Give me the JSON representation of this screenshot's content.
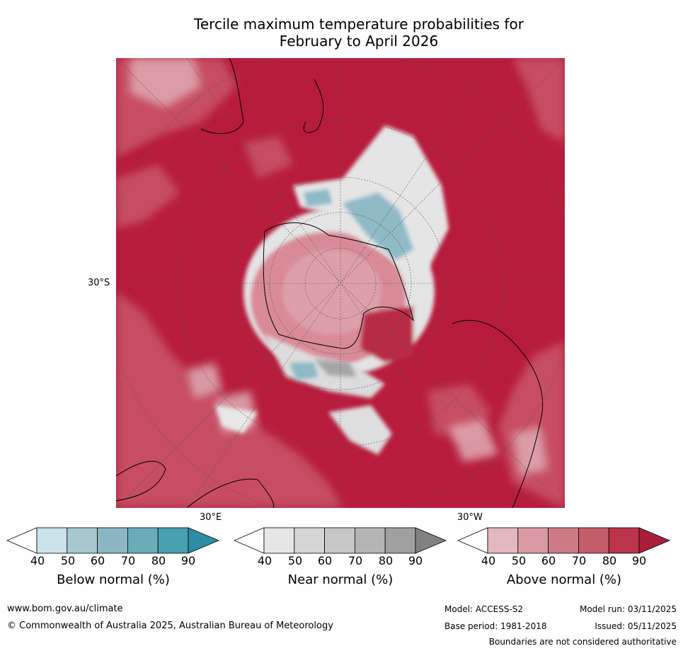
{
  "title_line1": "Tercile maximum temperature probabilities for",
  "title_line2": "February to April 2026",
  "map": {
    "lat_label": "30°S",
    "lon_label_east": "30°E",
    "lon_label_west": "30°W"
  },
  "colorbars": [
    {
      "label": "Below normal (%)",
      "ticks": [
        "40",
        "50",
        "60",
        "70",
        "80",
        "90"
      ],
      "colors": [
        "#ffffff",
        "#cbe2e8",
        "#a8c8d0",
        "#8cb6c3",
        "#6aacb8",
        "#48a1b1",
        "#2b8ea6"
      ]
    },
    {
      "label": "Near normal (%)",
      "ticks": [
        "40",
        "50",
        "60",
        "70",
        "80",
        "90"
      ],
      "colors": [
        "#ffffff",
        "#e6e6e6",
        "#d6d6d6",
        "#c7c7c7",
        "#b4b4b4",
        "#a0a0a0",
        "#818181"
      ]
    },
    {
      "label": "Above normal (%)",
      "ticks": [
        "40",
        "50",
        "60",
        "70",
        "80",
        "90"
      ],
      "colors": [
        "#ffffff",
        "#e3b8bf",
        "#d99aa3",
        "#cd7a86",
        "#c35d6a",
        "#bb3449",
        "#a91e3a"
      ]
    }
  ],
  "footer": {
    "website": "www.bom.gov.au/climate",
    "copyright": "© Commonwealth of Australia 2025, Australian Bureau of Meteorology",
    "model": "Model: ACCESS-S2",
    "model_run": "Model run: 03/11/2025",
    "base_period": "Base period: 1981-2018",
    "issued": "Issued: 05/11/2025",
    "disclaimer": "Boundaries are not considered authoritative"
  }
}
